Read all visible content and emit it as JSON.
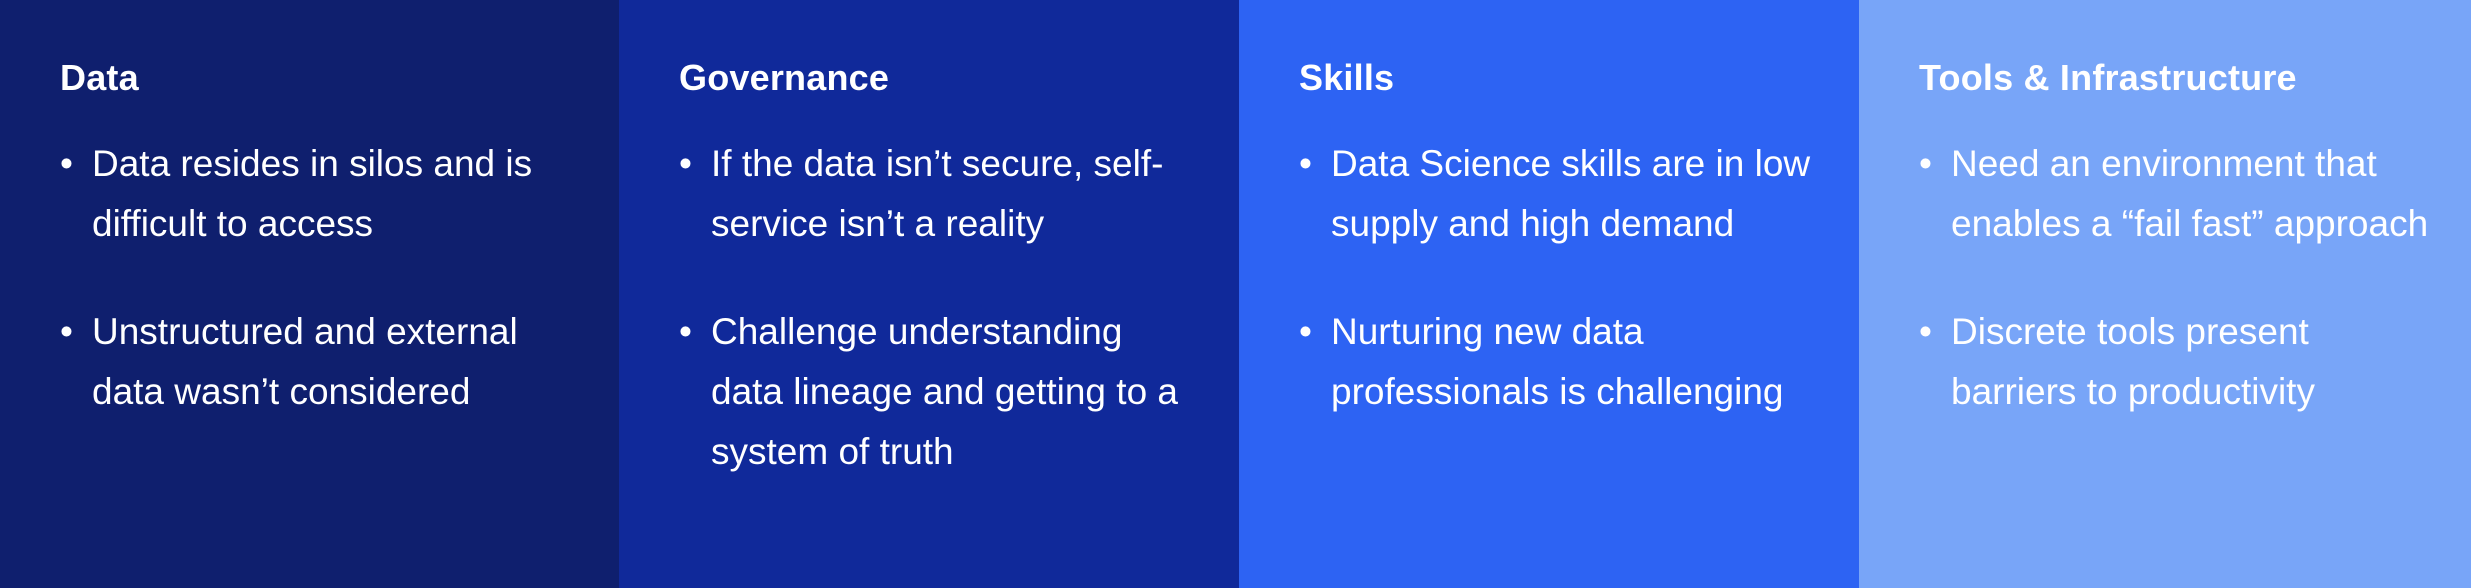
{
  "panels": [
    {
      "title": "Data",
      "color": "#0f1f6e",
      "items": [
        "Data resides in silos and is difficult to access",
        "Unstructured and external data wasn’t considered"
      ]
    },
    {
      "title": "Governance",
      "color": "#10299a",
      "items": [
        "If the data isn’t secure, self-service isn’t a reality",
        "Challenge understanding data lineage and getting to a system of truth"
      ]
    },
    {
      "title": "Skills",
      "color": "#2d63f3",
      "items": [
        "Data Science skills are in low supply and high demand",
        "Nurturing new data professionals is challenging"
      ]
    },
    {
      "title": "Tools & Infrastructure",
      "color": "#78a5f8",
      "items": [
        "Need an environment that enables a “fail fast” approach",
        "Discrete tools present barriers to productivity"
      ]
    }
  ],
  "bullet": "•"
}
